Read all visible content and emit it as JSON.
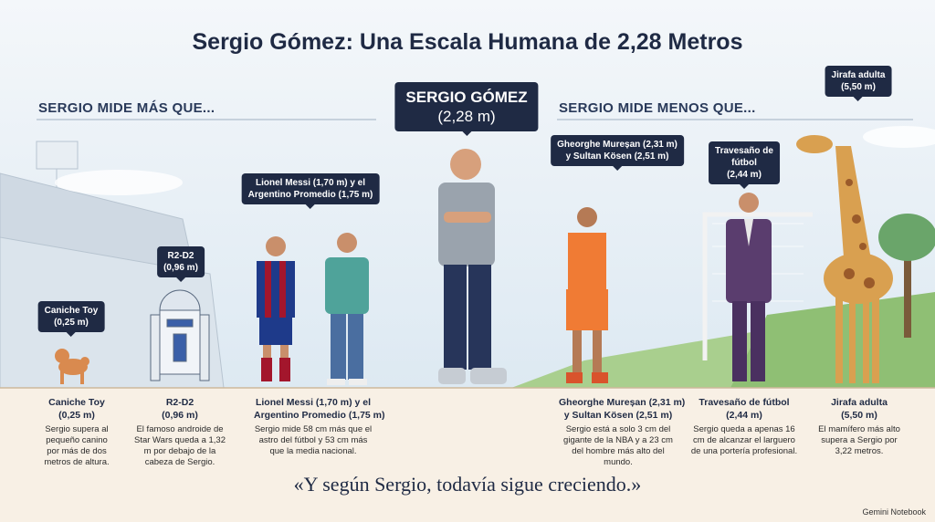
{
  "header": {
    "title": "Sergio Gómez: Una Escala Humana de 2,28 Metros"
  },
  "sections": {
    "left": "SERGIO MIDE MÁS QUE...",
    "right": "SERGIO MIDE MENOS QUE..."
  },
  "subject": {
    "name": "SERGIO GÓMEZ",
    "height": "(2,28 m)"
  },
  "comparisons": [
    {
      "callout": [
        "Caniche Toy",
        "(0,25 m)"
      ],
      "caption": [
        "Caniche Toy",
        "(0,25 m)"
      ],
      "description": "Sergio supera al pequeño canino por más de dos metros de altura."
    },
    {
      "callout": [
        "R2-D2",
        "(0,96 m)"
      ],
      "caption": [
        "R2-D2",
        "(0,96 m)"
      ],
      "description": "El famoso androide de Star Wars queda a 1,32 m por debajo de la cabeza de Sergio."
    },
    {
      "callout": [
        "Lionel Messi (1,70 m) y el",
        "Argentino Promedio (1,75 m)"
      ],
      "caption": [
        "Lionel Messi (1,70 m) y el",
        "Argentino Promedio (1,75 m)"
      ],
      "description": "Sergio mide 58 cm más que el astro del fútbol y 53 cm más que la media nacional."
    },
    {
      "callout": [
        "Gheorghe Mureșan (2,31 m)",
        "y Sultan Kösen (2,51 m)"
      ],
      "caption": [
        "Gheorghe Mureșan (2,31 m)",
        "y Sultan Kösen (2,51 m)"
      ],
      "description": "Sergio está a solo 3 cm del gigante de la NBA y a 23 cm del hombre más alto del mundo."
    },
    {
      "callout": [
        "Travesaño de",
        "fútbol",
        "(2,44 m)"
      ],
      "caption": [
        "Travesaño de fútbol",
        "(2,44 m)"
      ],
      "description": "Sergio queda a apenas 16 cm de alcanzar el larguero de una portería profesional."
    },
    {
      "callout": [
        "Jirafa adulta",
        "(5,50 m)"
      ],
      "caption": [
        "Jirafa adulta",
        "(5,50 m)"
      ],
      "description": "El mamífero más alto supera a Sergio por 3,22 metros."
    }
  ],
  "quote": "«Y según Sergio, todavía sigue creciendo.»",
  "footer": "Gemini Notebook"
}
